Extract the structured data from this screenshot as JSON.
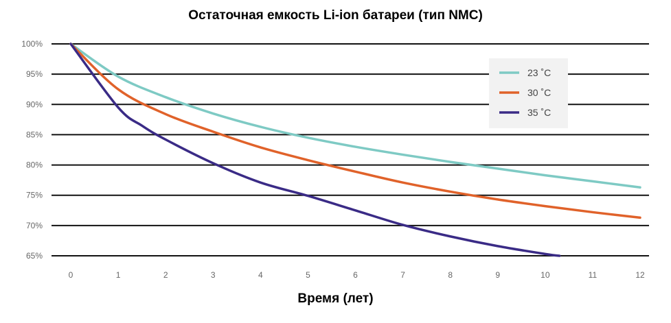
{
  "chart_data": {
    "type": "line",
    "title": "Остаточная емкость Li-ion батареи (тип NMC)",
    "xlabel": "Время (лет)",
    "ylabel": "",
    "xlim": [
      0,
      12
    ],
    "ylim": [
      65,
      100
    ],
    "x_ticks": [
      "0",
      "1",
      "2",
      "3",
      "4",
      "5",
      "6",
      "7",
      "8",
      "9",
      "10",
      "11",
      "12"
    ],
    "y_ticks": [
      "100%",
      "95%",
      "90%",
      "85%",
      "80%",
      "75%",
      "70%",
      "65%"
    ],
    "grid": true,
    "legend_position": "top-right",
    "series": [
      {
        "name": "23 ˚C",
        "color": "#7ecac4",
        "x": [
          0,
          1,
          2,
          3,
          4,
          5,
          6,
          7,
          8,
          9,
          10,
          11,
          12
        ],
        "y": [
          100,
          94.6,
          91.2,
          88.5,
          86.3,
          84.5,
          83.0,
          81.7,
          80.5,
          79.4,
          78.3,
          77.3,
          76.3
        ]
      },
      {
        "name": "30 ˚C",
        "color": "#e0622a",
        "x": [
          0,
          1,
          2,
          3,
          4,
          5,
          6,
          7,
          8,
          9,
          10,
          11,
          12
        ],
        "y": [
          100,
          92.5,
          88.4,
          85.5,
          82.9,
          80.8,
          78.9,
          77.1,
          75.6,
          74.3,
          73.2,
          72.2,
          71.3
        ]
      },
      {
        "name": "35 ˚C",
        "color": "#3a2b86",
        "x": [
          0,
          1,
          1.5,
          2,
          3,
          4,
          5,
          6,
          7,
          8,
          9,
          10,
          10.3
        ],
        "y": [
          100,
          89.5,
          86.5,
          84.2,
          80.3,
          77.1,
          74.9,
          72.5,
          70.1,
          68.2,
          66.6,
          65.3,
          65.0
        ]
      }
    ]
  }
}
